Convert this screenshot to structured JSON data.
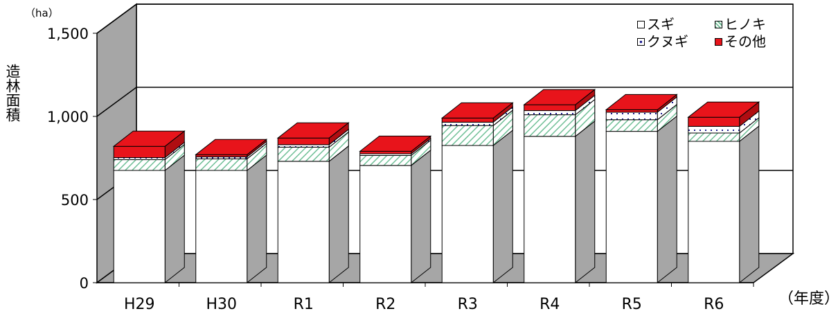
{
  "chart_data": {
    "type": "bar",
    "stacked": true,
    "style": "3d",
    "title": "",
    "ylabel": "造林面積",
    "yunit": "（ha）",
    "xunit": "（年度）",
    "ylim": [
      0,
      1500
    ],
    "yticks": [
      0,
      500,
      1000,
      1500
    ],
    "ytick_labels": [
      "0",
      "500",
      "1,000",
      "1,500"
    ],
    "grid": true,
    "legend_position": "top-right",
    "categories": [
      "H29",
      "H30",
      "R1",
      "R2",
      "R3",
      "R4",
      "R5",
      "R6"
    ],
    "series": [
      {
        "name": "スギ",
        "label": "スギ",
        "fill": "white",
        "color": "#ffffff",
        "values": [
          675,
          675,
          730,
          705,
          825,
          880,
          910,
          850
        ]
      },
      {
        "name": "ヒノキ",
        "label": "ヒノキ",
        "fill": "hatch",
        "color": "#6fbf96",
        "values": [
          65,
          70,
          85,
          60,
          120,
          130,
          70,
          50
        ]
      },
      {
        "name": "クヌギ",
        "label": "クヌギ",
        "fill": "dots",
        "color": "#1a1a8c",
        "values": [
          12,
          12,
          15,
          10,
          20,
          25,
          45,
          40
        ]
      },
      {
        "name": "その他",
        "label": "その他",
        "fill": "solid",
        "color": "#e8141b",
        "values": [
          68,
          13,
          40,
          15,
          25,
          35,
          15,
          55
        ]
      }
    ]
  },
  "legend": {
    "items": [
      {
        "label": "スギ"
      },
      {
        "label": "ヒノキ"
      },
      {
        "label": "クヌギ"
      },
      {
        "label": "その他"
      }
    ]
  }
}
